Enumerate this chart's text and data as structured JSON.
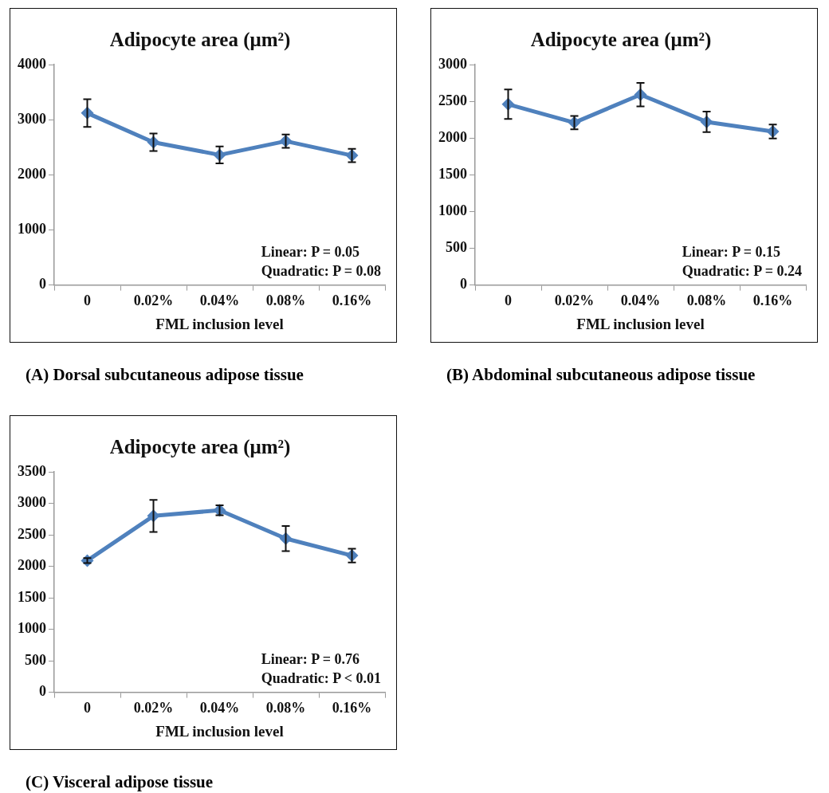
{
  "chart_data": [
    {
      "type": "line",
      "title": "Adipocyte area (μm²)",
      "xlabel": "FML inclusion level",
      "categories": [
        "0",
        "0.02%",
        "0.04%",
        "0.08%",
        "0.16%"
      ],
      "values": [
        3120,
        2590,
        2360,
        2610,
        2350
      ],
      "errors": [
        250,
        160,
        155,
        120,
        120
      ],
      "color": "#4f81bd",
      "marker": "diamond",
      "line_style": "solid",
      "grid": false,
      "legend": false,
      "ylim": [
        0,
        4000
      ],
      "yticks": [
        0,
        1000,
        2000,
        3000,
        4000
      ],
      "annotations": [
        "Linear: P = 0.05",
        "Quadratic: P = 0.08",
        "(A) Dorsal subcutaneous adipose tissue"
      ]
    },
    {
      "type": "line",
      "title": "Adipocyte area (μm²)",
      "xlabel": "FML inclusion level",
      "categories": [
        "0",
        "0.02%",
        "0.04%",
        "0.08%",
        "0.16%"
      ],
      "values": [
        2460,
        2210,
        2590,
        2220,
        2090
      ],
      "errors": [
        200,
        90,
        160,
        140,
        95
      ],
      "color": "#4f81bd",
      "marker": "diamond",
      "line_style": "solid",
      "grid": false,
      "legend": false,
      "ylim": [
        0,
        3000
      ],
      "yticks": [
        0,
        500,
        1000,
        1500,
        2000,
        2500,
        3000
      ],
      "annotations": [
        "Linear: P = 0.15",
        "Quadratic: P = 0.24",
        "(B) Abdominal subcutaneous adipose tissue"
      ]
    },
    {
      "type": "line",
      "title": "Adipocyte area (μm²)",
      "xlabel": "FML inclusion level",
      "categories": [
        "0",
        "0.02%",
        "0.04%",
        "0.08%",
        "0.16%"
      ],
      "values": [
        2090,
        2800,
        2890,
        2440,
        2170
      ],
      "errors": [
        40,
        255,
        80,
        200,
        110
      ],
      "color": "#4f81bd",
      "marker": "diamond",
      "line_style": "solid",
      "grid": false,
      "legend": false,
      "ylim": [
        0,
        3500
      ],
      "yticks": [
        0,
        500,
        1000,
        1500,
        2000,
        2500,
        3000,
        3500
      ],
      "annotations": [
        "Linear: P = 0.76",
        "Quadratic: P < 0.01",
        "(C) Visceral adipose tissue"
      ]
    }
  ]
}
